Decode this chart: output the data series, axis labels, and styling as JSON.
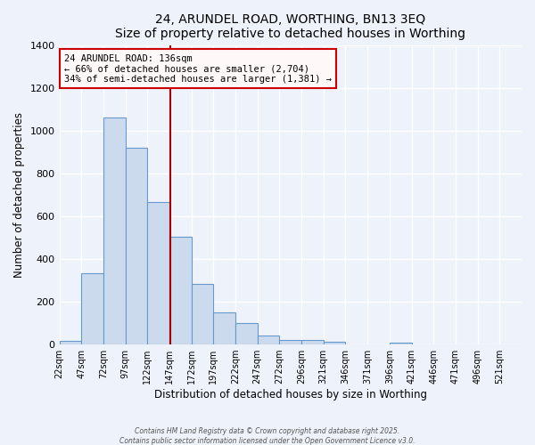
{
  "title": "24, ARUNDEL ROAD, WORTHING, BN13 3EQ",
  "subtitle": "Size of property relative to detached houses in Worthing",
  "xlabel": "Distribution of detached houses by size in Worthing",
  "ylabel": "Number of detached properties",
  "bar_color": "#ccdaee",
  "bar_edge_color": "#6699cc",
  "background_color": "#eef2fa",
  "grid_color": "#ffffff",
  "categories": [
    "22sqm",
    "47sqm",
    "72sqm",
    "97sqm",
    "122sqm",
    "147sqm",
    "172sqm",
    "197sqm",
    "222sqm",
    "247sqm",
    "272sqm",
    "296sqm",
    "321sqm",
    "346sqm",
    "371sqm",
    "396sqm",
    "421sqm",
    "446sqm",
    "471sqm",
    "496sqm",
    "521sqm"
  ],
  "values": [
    18,
    335,
    1063,
    921,
    666,
    503,
    285,
    152,
    100,
    43,
    22,
    22,
    12,
    0,
    0,
    7,
    0,
    0,
    0,
    0,
    0
  ],
  "ylim": [
    0,
    1400
  ],
  "yticks": [
    0,
    200,
    400,
    600,
    800,
    1000,
    1200,
    1400
  ],
  "annotation_title": "24 ARUNDEL ROAD: 136sqm",
  "annotation_line1": "← 66% of detached houses are smaller (2,704)",
  "annotation_line2": "34% of semi-detached houses are larger (1,381) →",
  "annotation_box_color": "#fff8f8",
  "annotation_box_edge": "#cc0000",
  "vline_color": "#aa0000",
  "vline_x_index": 5,
  "footer1": "Contains HM Land Registry data © Crown copyright and database right 2025.",
  "footer2": "Contains public sector information licensed under the Open Government Licence v3.0."
}
